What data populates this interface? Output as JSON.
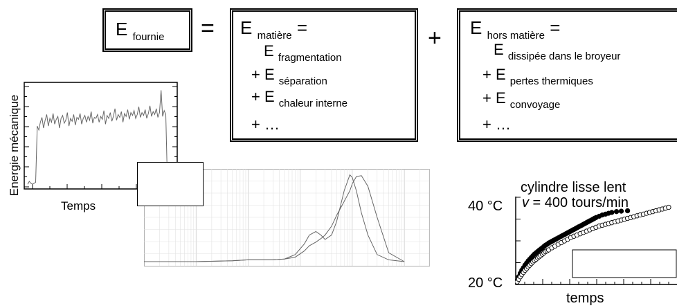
{
  "equation": {
    "fournie": {
      "E": "E",
      "sub": "fournie"
    },
    "equals": "=",
    "plus": "+",
    "matiere": {
      "head_E": "E",
      "head_sub": "matière",
      "head_eq": "=",
      "terms": [
        {
          "prefix": "",
          "E": "E",
          "sub": "fragmentation"
        },
        {
          "prefix": "+ ",
          "E": "E",
          "sub": "séparation"
        },
        {
          "prefix": "+ ",
          "E": "E",
          "sub": "chaleur interne"
        }
      ],
      "ellipsis": "+ …"
    },
    "hors_matiere": {
      "head_E": "E",
      "head_sub": "hors matière",
      "head_eq": "=",
      "terms": [
        {
          "prefix": "",
          "E": "E",
          "sub": "dissipée dans le broyeur"
        },
        {
          "prefix": "+ ",
          "E": "E",
          "sub": "pertes thermiques"
        },
        {
          "prefix": "+ ",
          "E": "E",
          "sub": "convoyage"
        }
      ],
      "ellipsis": "+ …"
    }
  },
  "chart_data": [
    {
      "type": "line",
      "title": "",
      "xlabel": "Temps",
      "ylabel": "Energie mécanique",
      "series": [
        {
          "values": [
            0.02,
            0.05,
            0.03,
            0.02,
            0.03,
            0.04,
            0.62,
            0.58,
            0.66,
            0.71,
            0.6,
            0.68,
            0.74,
            0.62,
            0.7,
            0.66,
            0.75,
            0.64,
            0.69,
            0.72,
            0.6,
            0.7,
            0.73,
            0.65,
            0.68,
            0.76,
            0.62,
            0.7,
            0.67,
            0.74,
            0.63,
            0.71,
            0.69,
            0.75,
            0.64,
            0.7,
            0.73,
            0.66,
            0.72,
            0.68,
            0.77,
            0.65,
            0.71,
            0.7,
            0.74,
            0.66,
            0.72,
            0.69,
            0.78,
            0.64,
            0.73,
            0.7,
            0.76,
            0.67,
            0.72,
            0.8,
            0.68,
            0.74,
            0.71,
            0.77,
            0.66,
            0.75,
            0.72,
            0.79,
            0.69,
            0.76,
            0.73,
            0.78,
            0.7,
            0.74,
            0.82,
            0.71,
            0.76,
            0.73,
            0.79,
            0.7,
            0.75,
            0.83,
            0.72,
            0.77,
            0.74,
            0.8,
            0.71,
            0.76,
            0.99,
            0.72,
            0.78,
            0.74,
            0.05,
            0.03,
            0.02,
            0.04,
            0.03
          ]
        }
      ]
    },
    {
      "type": "line",
      "title": "",
      "xlabel": "",
      "ylabel": "",
      "x_scale": "log",
      "xlim": [
        0.01,
        3000
      ],
      "series": [
        {
          "x": [
            0.01,
            0.1,
            0.5,
            1,
            3,
            5,
            8,
            12,
            15,
            20,
            25,
            30,
            40,
            50,
            70,
            90,
            100,
            120,
            150,
            200,
            300,
            500,
            1000
          ],
          "y": [
            0,
            0,
            0.01,
            0.02,
            0.02,
            0.03,
            0.08,
            0.2,
            0.3,
            0.34,
            0.3,
            0.25,
            0.3,
            0.45,
            0.8,
            0.98,
            0.95,
            0.8,
            0.55,
            0.3,
            0.08,
            0.02,
            0
          ]
        },
        {
          "x": [
            0.01,
            0.1,
            0.5,
            1,
            3,
            5,
            8,
            12,
            15,
            20,
            25,
            30,
            40,
            50,
            70,
            90,
            100,
            120,
            150,
            200,
            300,
            500,
            1000
          ],
          "y": [
            0,
            0,
            0.01,
            0.02,
            0.02,
            0.03,
            0.05,
            0.12,
            0.18,
            0.22,
            0.26,
            0.3,
            0.4,
            0.52,
            0.68,
            0.8,
            0.88,
            0.96,
            0.97,
            0.85,
            0.5,
            0.1,
            0
          ]
        }
      ]
    },
    {
      "type": "scatter",
      "title": "cylindre lisse lent",
      "annotation": {
        "v": "v",
        "rest": " = 400 tours/min"
      },
      "xlabel": "temps",
      "ylabel": "",
      "ylim": [
        20,
        40
      ],
      "ytick_labels": [
        "40 °C",
        "20 °C"
      ],
      "series": [
        {
          "marker": "filled",
          "x": [
            0,
            1,
            2,
            3,
            4,
            5,
            6,
            7,
            8,
            9,
            10,
            11,
            12,
            13,
            14,
            15,
            16,
            17,
            18,
            19,
            20,
            21,
            22,
            23,
            24,
            25,
            26,
            27,
            28,
            29,
            30,
            31,
            32,
            33,
            34,
            35,
            36,
            37,
            38,
            39,
            40,
            41,
            42,
            43,
            44,
            45,
            46,
            47,
            48,
            49,
            50,
            52,
            54,
            56,
            58,
            60,
            63,
            66,
            70
          ],
          "y": [
            20.5,
            21.5,
            22.3,
            23,
            23.6,
            24.2,
            24.7,
            25.2,
            25.6,
            26,
            26.4,
            26.8,
            27.1,
            27.4,
            27.7,
            28,
            28.3,
            28.6,
            28.9,
            29.1,
            29.4,
            29.6,
            29.8,
            30,
            30.2,
            30.4,
            30.6,
            30.8,
            31,
            31.2,
            31.4,
            31.6,
            31.8,
            32,
            32.2,
            32.4,
            32.6,
            32.8,
            33,
            33.2,
            33.4,
            33.6,
            33.8,
            34,
            34.2,
            34.4,
            34.6,
            34.8,
            35,
            35.2,
            35.4,
            35.7,
            36,
            36.2,
            36.4,
            36.6,
            36.8,
            36.9,
            37
          ]
        },
        {
          "marker": "open",
          "x": [
            0,
            1,
            2,
            3,
            4,
            5,
            6,
            7,
            8,
            9,
            10,
            11,
            12,
            13,
            14,
            15,
            16,
            17,
            18,
            19,
            20,
            22,
            24,
            26,
            28,
            30,
            32,
            34,
            36,
            38,
            40,
            42,
            44,
            46,
            48,
            50,
            52,
            54,
            56,
            58,
            60,
            62,
            64,
            66,
            68,
            70,
            72,
            74,
            76,
            78,
            80,
            82,
            84,
            86,
            88,
            90,
            92,
            94,
            96
          ],
          "y": [
            20.3,
            20.9,
            21.5,
            22,
            22.5,
            23,
            23.4,
            23.8,
            24.2,
            24.6,
            25,
            25.3,
            25.6,
            25.9,
            26.2,
            26.5,
            26.8,
            27.1,
            27.4,
            27.6,
            27.8,
            28.3,
            28.7,
            29.1,
            29.5,
            29.9,
            30.3,
            30.7,
            31,
            31.3,
            31.6,
            31.9,
            32.2,
            32.5,
            32.8,
            33.1,
            33.4,
            33.6,
            33.8,
            34,
            34.2,
            34.4,
            34.6,
            34.8,
            35,
            35.2,
            35.4,
            35.6,
            35.8,
            36,
            36.2,
            36.4,
            36.6,
            36.8,
            37,
            37.2,
            37.4,
            37.6,
            37.8
          ]
        }
      ]
    }
  ]
}
